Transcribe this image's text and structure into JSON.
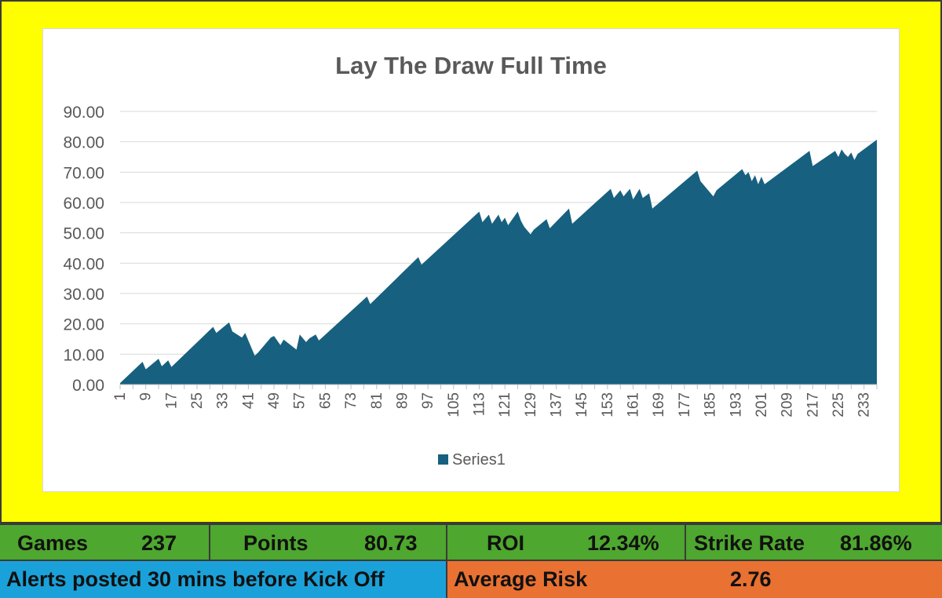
{
  "colors": {
    "frame_bg": "#ffff00",
    "series_fill": "#17607f",
    "stats_bg": "#4ea72e",
    "alerts_bg": "#1ba1d9",
    "risk_bg": "#e97132"
  },
  "stats": {
    "games_label": "Games",
    "games_value": "237",
    "points_label": "Points",
    "points_value": "80.73",
    "roi_label": "ROI",
    "roi_value": "12.34%",
    "strike_label": "Strike Rate",
    "strike_value": "81.86%"
  },
  "info": {
    "alerts_text": "Alerts posted 30 mins before Kick Off",
    "risk_label": "Average Risk",
    "risk_value": "2.76"
  },
  "chart_data": {
    "type": "area",
    "title": "Lay The Draw Full Time",
    "xlabel": "",
    "ylabel": "",
    "ylim": [
      0,
      90
    ],
    "yticks": [
      "0.00",
      "10.00",
      "20.00",
      "30.00",
      "40.00",
      "50.00",
      "60.00",
      "70.00",
      "80.00",
      "90.00"
    ],
    "xticks": [
      1,
      9,
      17,
      25,
      33,
      41,
      49,
      57,
      65,
      73,
      81,
      89,
      97,
      105,
      113,
      121,
      129,
      137,
      145,
      153,
      161,
      169,
      177,
      185,
      193,
      201,
      209,
      217,
      225,
      233
    ],
    "grid": true,
    "legend_position": "bottom",
    "series": [
      {
        "name": "Series1",
        "x": [
          1,
          8,
          9,
          13,
          14,
          16,
          17,
          30,
          31,
          35,
          36,
          39,
          40,
          42,
          43,
          44,
          48,
          49,
          51,
          52,
          56,
          57,
          59,
          60,
          62,
          63,
          78,
          79,
          94,
          95,
          113,
          114,
          116,
          117,
          119,
          120,
          121,
          122,
          125,
          126,
          127,
          129,
          130,
          134,
          135,
          141,
          142,
          154,
          155,
          157,
          158,
          160,
          161,
          163,
          164,
          166,
          167,
          181,
          182,
          186,
          187,
          195,
          196,
          197,
          198,
          199,
          200,
          201,
          202,
          216,
          217,
          224,
          225,
          226,
          227,
          228,
          229,
          230,
          231,
          237
        ],
        "values": [
          0.5,
          7.5,
          5.0,
          8.5,
          6.0,
          8.0,
          5.8,
          19.0,
          17.0,
          20.5,
          17.5,
          15.5,
          17.0,
          12.0,
          9.5,
          10.5,
          15.5,
          16.0,
          13.0,
          14.8,
          11.5,
          16.5,
          14.0,
          15.2,
          16.5,
          14.5,
          29.0,
          26.5,
          42.0,
          39.5,
          57.0,
          53.5,
          56.0,
          53.0,
          56.0,
          53.5,
          55.0,
          52.5,
          57.0,
          54.0,
          52.0,
          49.5,
          51.0,
          54.5,
          51.5,
          58.0,
          53.0,
          64.5,
          61.5,
          64.0,
          62.0,
          64.5,
          61.0,
          64.5,
          61.5,
          63.0,
          58.0,
          70.5,
          67.0,
          62.0,
          64.0,
          71.0,
          69.0,
          70.0,
          67.0,
          69.0,
          66.0,
          68.5,
          66.0,
          77.0,
          72.0,
          77.0,
          75.0,
          77.5,
          76.0,
          75.0,
          76.5,
          74.0,
          76.0,
          80.7
        ]
      }
    ]
  }
}
